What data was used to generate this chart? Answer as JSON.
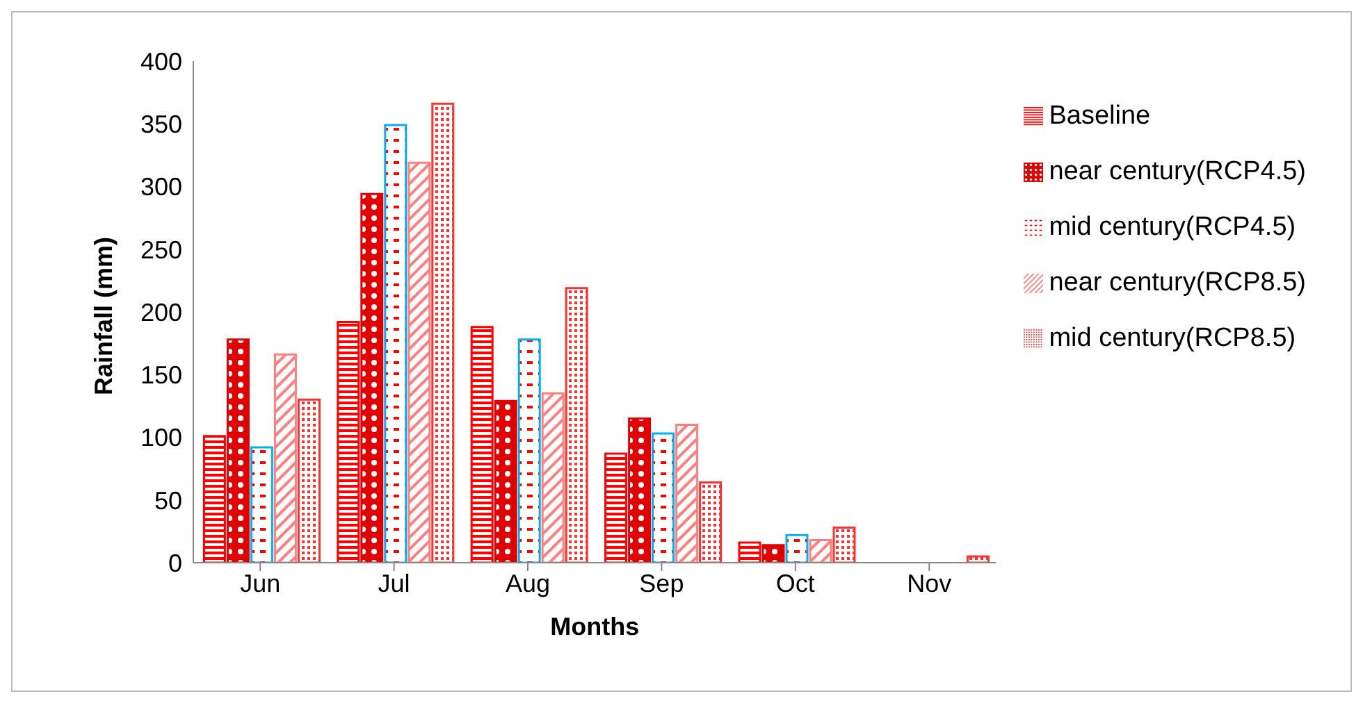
{
  "chart_data": {
    "type": "bar",
    "xlabel": "Months",
    "ylabel": "Rainfall (mm)",
    "categories": [
      "Jun",
      "Jul",
      "Aug",
      "Sep",
      "Oct",
      "Nov"
    ],
    "series": [
      {
        "name": "Baseline",
        "color": "#ff0000",
        "values": [
          101,
          192,
          188,
          87,
          16,
          0
        ]
      },
      {
        "name": "near century(RCP4.5)",
        "color": "#e00000",
        "values": [
          178,
          294,
          129,
          115,
          14,
          0
        ]
      },
      {
        "name": "mid century(RCP4.5)",
        "color": "#00b0f0",
        "values": [
          92,
          349,
          178,
          103,
          22,
          0
        ]
      },
      {
        "name": "near century(RCP8.5)",
        "color": "#ff7f7f",
        "values": [
          166,
          319,
          135,
          110,
          18,
          0
        ]
      },
      {
        "name": "mid century(RCP8.5)",
        "color": "#ff3030",
        "values": [
          130,
          366,
          219,
          64,
          28,
          5
        ]
      }
    ],
    "ylim": [
      0,
      400
    ],
    "yticks": [
      0,
      50,
      100,
      150,
      200,
      250,
      300,
      350,
      400
    ],
    "grid": false,
    "legend": "right"
  }
}
